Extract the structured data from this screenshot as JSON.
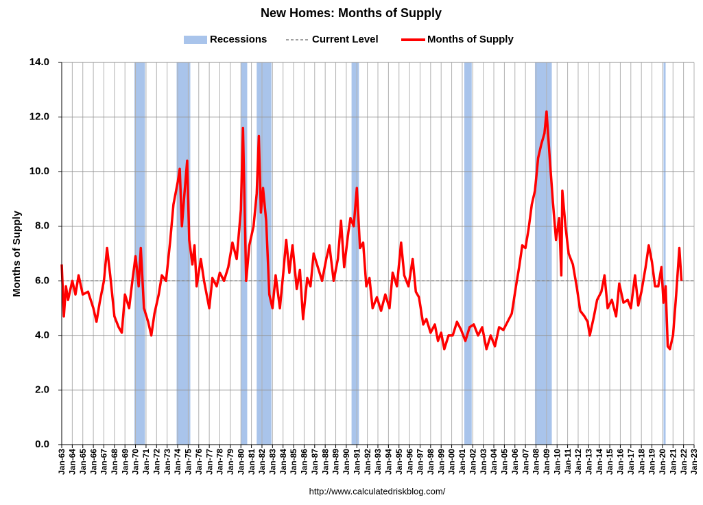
{
  "chart_data": {
    "type": "line",
    "title": "New Homes: Months of Supply",
    "y_label": "Months of Supply",
    "source": "http://www.calculatedriskblog.com/",
    "grid": true,
    "legend": "top",
    "xlim": [
      1963,
      2023
    ],
    "ylim": [
      0,
      14
    ],
    "yticks": [
      {
        "value": 0,
        "label": "0.0"
      },
      {
        "value": 2,
        "label": "2.0"
      },
      {
        "value": 4,
        "label": "4.0"
      },
      {
        "value": 6,
        "label": "6.0"
      },
      {
        "value": 8,
        "label": "8.0"
      },
      {
        "value": 10,
        "label": "10.0"
      },
      {
        "value": 12,
        "label": "12.0"
      },
      {
        "value": 14,
        "label": "14.0"
      }
    ],
    "xticks": [
      {
        "value": 1963,
        "label": "Jan-63"
      },
      {
        "value": 1964,
        "label": "Jan-64"
      },
      {
        "value": 1965,
        "label": "Jan-65"
      },
      {
        "value": 1966,
        "label": "Jan-66"
      },
      {
        "value": 1967,
        "label": "Jan-67"
      },
      {
        "value": 1968,
        "label": "Jan-68"
      },
      {
        "value": 1969,
        "label": "Jan-69"
      },
      {
        "value": 1970,
        "label": "Jan-70"
      },
      {
        "value": 1971,
        "label": "Jan-71"
      },
      {
        "value": 1972,
        "label": "Jan-72"
      },
      {
        "value": 1973,
        "label": "Jan-73"
      },
      {
        "value": 1974,
        "label": "Jan-74"
      },
      {
        "value": 1975,
        "label": "Jan-75"
      },
      {
        "value": 1976,
        "label": "Jan-76"
      },
      {
        "value": 1977,
        "label": "Jan-77"
      },
      {
        "value": 1978,
        "label": "Jan-78"
      },
      {
        "value": 1979,
        "label": "Jan-79"
      },
      {
        "value": 1980,
        "label": "Jan-80"
      },
      {
        "value": 1981,
        "label": "Jan-81"
      },
      {
        "value": 1982,
        "label": "Jan-82"
      },
      {
        "value": 1983,
        "label": "Jan-83"
      },
      {
        "value": 1984,
        "label": "Jan-84"
      },
      {
        "value": 1985,
        "label": "Jan-85"
      },
      {
        "value": 1986,
        "label": "Jan-86"
      },
      {
        "value": 1987,
        "label": "Jan-87"
      },
      {
        "value": 1988,
        "label": "Jan-88"
      },
      {
        "value": 1989,
        "label": "Jan-89"
      },
      {
        "value": 1990,
        "label": "Jan-90"
      },
      {
        "value": 1991,
        "label": "Jan-91"
      },
      {
        "value": 1992,
        "label": "Jan-92"
      },
      {
        "value": 1993,
        "label": "Jan-93"
      },
      {
        "value": 1994,
        "label": "Jan-94"
      },
      {
        "value": 1995,
        "label": "Jan-95"
      },
      {
        "value": 1996,
        "label": "Jan-96"
      },
      {
        "value": 1997,
        "label": "Jan-97"
      },
      {
        "value": 1998,
        "label": "Jan-98"
      },
      {
        "value": 1999,
        "label": "Jan-99"
      },
      {
        "value": 2000,
        "label": "Jan-00"
      },
      {
        "value": 2001,
        "label": "Jan-01"
      },
      {
        "value": 2002,
        "label": "Jan-02"
      },
      {
        "value": 2003,
        "label": "Jan-03"
      },
      {
        "value": 2004,
        "label": "Jan-04"
      },
      {
        "value": 2005,
        "label": "Jan-05"
      },
      {
        "value": 2006,
        "label": "Jan-06"
      },
      {
        "value": 2007,
        "label": "Jan-07"
      },
      {
        "value": 2008,
        "label": "Jan-08"
      },
      {
        "value": 2009,
        "label": "Jan-09"
      },
      {
        "value": 2010,
        "label": "Jan-10"
      },
      {
        "value": 2011,
        "label": "Jan-11"
      },
      {
        "value": 2012,
        "label": "Jan-12"
      },
      {
        "value": 2013,
        "label": "Jan-13"
      },
      {
        "value": 2014,
        "label": "Jan-14"
      },
      {
        "value": 2015,
        "label": "Jan-15"
      },
      {
        "value": 2016,
        "label": "Jan-16"
      },
      {
        "value": 2017,
        "label": "Jan-17"
      },
      {
        "value": 2018,
        "label": "Jan-18"
      },
      {
        "value": 2019,
        "label": "Jan-19"
      },
      {
        "value": 2020,
        "label": "Jan-20"
      },
      {
        "value": 2021,
        "label": "Jan-21"
      },
      {
        "value": 2022,
        "label": "Jan-22"
      },
      {
        "value": 2023,
        "label": "Jan-23"
      }
    ],
    "recessions": {
      "name": "Recessions",
      "color": "#a9c4eb",
      "periods": [
        [
          1969.9,
          1970.9
        ],
        [
          1973.9,
          1975.2
        ],
        [
          1980.0,
          1980.6
        ],
        [
          1981.5,
          1982.9
        ],
        [
          1990.5,
          1991.2
        ],
        [
          2001.2,
          2001.9
        ],
        [
          2007.9,
          2009.5
        ],
        [
          2020.1,
          2020.3
        ]
      ]
    },
    "current_level": {
      "name": "Current Level",
      "value": 6.0,
      "color": "#808080"
    },
    "series": [
      {
        "name": "Months of Supply",
        "color": "#ff0000",
        "x": [
          1963.0,
          1963.2,
          1963.4,
          1963.6,
          1964.0,
          1964.3,
          1964.6,
          1965.0,
          1965.5,
          1966.0,
          1966.3,
          1966.6,
          1967.0,
          1967.3,
          1967.6,
          1968.0,
          1968.4,
          1968.7,
          1969.0,
          1969.4,
          1969.7,
          1970.0,
          1970.3,
          1970.5,
          1970.8,
          1971.2,
          1971.5,
          1971.8,
          1972.2,
          1972.5,
          1972.9,
          1973.3,
          1973.6,
          1974.0,
          1974.2,
          1974.4,
          1974.6,
          1974.9,
          1975.1,
          1975.4,
          1975.6,
          1975.8,
          1976.2,
          1976.5,
          1977.0,
          1977.3,
          1977.7,
          1978.0,
          1978.4,
          1978.8,
          1979.2,
          1979.6,
          1980.0,
          1980.2,
          1980.5,
          1980.8,
          1981.2,
          1981.5,
          1981.7,
          1981.9,
          1982.1,
          1982.4,
          1982.7,
          1983.0,
          1983.3,
          1983.7,
          1984.0,
          1984.3,
          1984.6,
          1984.9,
          1985.3,
          1985.6,
          1985.9,
          1986.3,
          1986.6,
          1986.9,
          1987.3,
          1987.7,
          1988.1,
          1988.4,
          1988.8,
          1989.2,
          1989.5,
          1989.8,
          1990.2,
          1990.4,
          1990.7,
          1991.0,
          1991.3,
          1991.6,
          1991.9,
          1992.2,
          1992.5,
          1992.9,
          1993.3,
          1993.7,
          1994.1,
          1994.4,
          1994.8,
          1995.2,
          1995.5,
          1995.9,
          1996.3,
          1996.6,
          1996.9,
          1997.3,
          1997.6,
          1998.0,
          1998.4,
          1998.7,
          1999.0,
          1999.3,
          1999.7,
          2000.1,
          2000.5,
          2000.9,
          2001.3,
          2001.7,
          2002.1,
          2002.5,
          2002.9,
          2003.3,
          2003.7,
          2004.1,
          2004.5,
          2004.9,
          2005.3,
          2005.7,
          2006.1,
          2006.4,
          2006.7,
          2007.0,
          2007.3,
          2007.6,
          2007.9,
          2008.2,
          2008.5,
          2008.8,
          2009.0,
          2009.3,
          2009.6,
          2009.9,
          2010.2,
          2010.4,
          2010.5,
          2010.8,
          2011.1,
          2011.5,
          2011.9,
          2012.2,
          2012.6,
          2012.9,
          2013.1,
          2013.5,
          2013.8,
          2014.2,
          2014.5,
          2014.8,
          2015.2,
          2015.6,
          2015.9,
          2016.3,
          2016.7,
          2017.0,
          2017.4,
          2017.7,
          2018.0,
          2018.4,
          2018.7,
          2019.0,
          2019.3,
          2019.6,
          2019.9,
          2020.1,
          2020.3,
          2020.5,
          2020.7,
          2021.0,
          2021.3,
          2021.5,
          2021.6,
          2021.8
        ],
        "values": [
          6.6,
          4.7,
          5.8,
          5.3,
          6.0,
          5.5,
          6.2,
          5.5,
          5.6,
          5.0,
          4.5,
          5.2,
          6.0,
          7.2,
          6.2,
          4.7,
          4.3,
          4.1,
          5.5,
          5.0,
          6.0,
          6.9,
          5.8,
          7.2,
          5.0,
          4.5,
          4.0,
          4.8,
          5.5,
          6.2,
          6.0,
          7.5,
          8.8,
          9.6,
          10.1,
          8.0,
          9.0,
          10.4,
          7.5,
          6.6,
          7.3,
          5.8,
          6.8,
          6.0,
          5.0,
          6.1,
          5.8,
          6.3,
          6.0,
          6.5,
          7.4,
          6.8,
          8.6,
          11.6,
          6.0,
          7.3,
          8.0,
          9.2,
          11.3,
          8.5,
          9.4,
          8.2,
          5.5,
          5.0,
          6.2,
          5.0,
          6.2,
          7.5,
          6.3,
          7.3,
          5.7,
          6.4,
          4.6,
          6.1,
          5.8,
          7.0,
          6.5,
          6.0,
          6.8,
          7.3,
          6.0,
          6.8,
          8.2,
          6.5,
          7.8,
          8.3,
          8.0,
          9.4,
          7.2,
          7.4,
          5.8,
          6.1,
          5.0,
          5.4,
          4.9,
          5.5,
          5.0,
          6.3,
          5.8,
          7.4,
          6.2,
          5.8,
          6.8,
          5.6,
          5.4,
          4.4,
          4.6,
          4.1,
          4.4,
          3.8,
          4.1,
          3.5,
          4.0,
          4.0,
          4.5,
          4.2,
          3.8,
          4.3,
          4.4,
          4.0,
          4.3,
          3.5,
          4.0,
          3.6,
          4.3,
          4.2,
          4.5,
          4.8,
          5.8,
          6.5,
          7.3,
          7.2,
          7.9,
          8.8,
          9.3,
          10.5,
          11.0,
          11.4,
          12.2,
          10.5,
          8.9,
          7.5,
          8.3,
          6.2,
          9.3,
          8.0,
          7.0,
          6.6,
          5.7,
          4.9,
          4.7,
          4.5,
          4.0,
          4.7,
          5.3,
          5.6,
          6.2,
          5.0,
          5.3,
          4.7,
          5.9,
          5.2,
          5.3,
          5.0,
          6.2,
          5.1,
          5.6,
          6.5,
          7.3,
          6.7,
          5.8,
          5.8,
          6.5,
          5.2,
          5.8,
          3.6,
          3.5,
          4.0,
          5.5,
          6.6,
          7.2,
          6.0
        ]
      }
    ]
  }
}
